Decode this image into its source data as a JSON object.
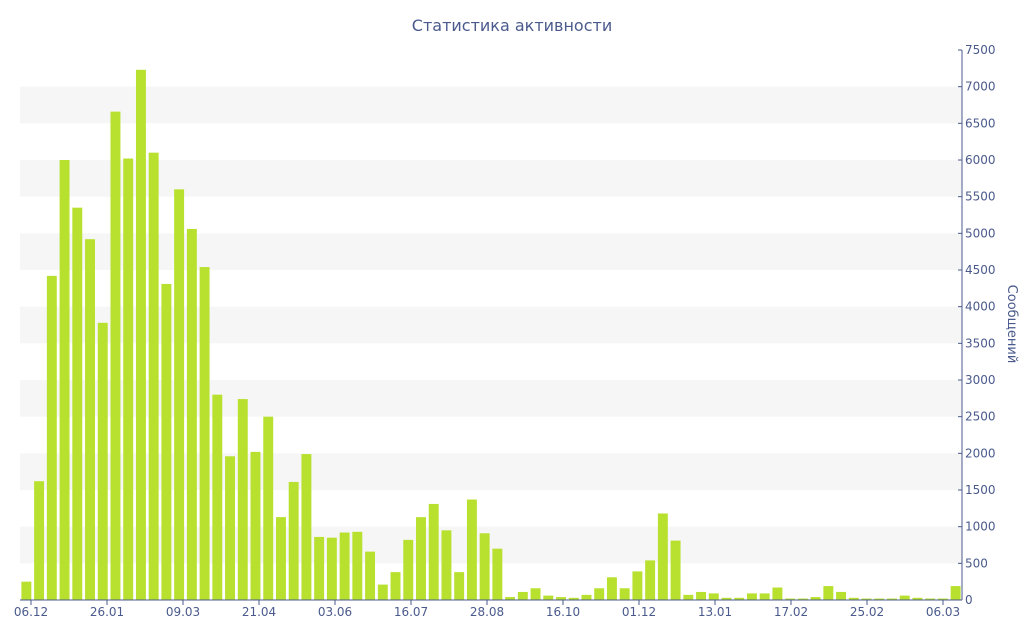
{
  "chart_data": {
    "type": "bar",
    "title": "Статистика активности",
    "ylabel": "Сообщений",
    "ylim": [
      0,
      7500
    ],
    "y_ticks": [
      0,
      500,
      1000,
      1500,
      2000,
      2500,
      3000,
      3500,
      4000,
      4500,
      5000,
      5500,
      6000,
      6500,
      7000,
      7500
    ],
    "y_axis_side": "right",
    "grid": "alternating horizontal bands",
    "bar_color": "#b8e02e",
    "band_color": "#f6f6f6",
    "axis_color": "#4a5a8c",
    "x_tick_labels": [
      "06.12",
      "26.01",
      "09.03",
      "21.04",
      "03.06",
      "16.07",
      "28.08",
      "16.10",
      "01.12",
      "13.01",
      "17.02",
      "25.02",
      "06.03"
    ],
    "values": [
      250,
      1620,
      4420,
      6000,
      5350,
      4920,
      3780,
      6660,
      6020,
      7230,
      6100,
      4310,
      5600,
      5060,
      4540,
      2800,
      1960,
      2740,
      2020,
      2500,
      1130,
      1610,
      1990,
      860,
      850,
      920,
      930,
      660,
      210,
      380,
      820,
      1130,
      1310,
      950,
      380,
      1370,
      910,
      700,
      40,
      110,
      160,
      60,
      40,
      30,
      70,
      160,
      310,
      160,
      390,
      540,
      1180,
      810,
      70,
      110,
      90,
      30,
      30,
      90,
      90,
      170,
      20,
      20,
      40,
      190,
      110,
      30,
      20,
      20,
      20,
      60,
      30,
      20,
      20,
      190
    ]
  }
}
